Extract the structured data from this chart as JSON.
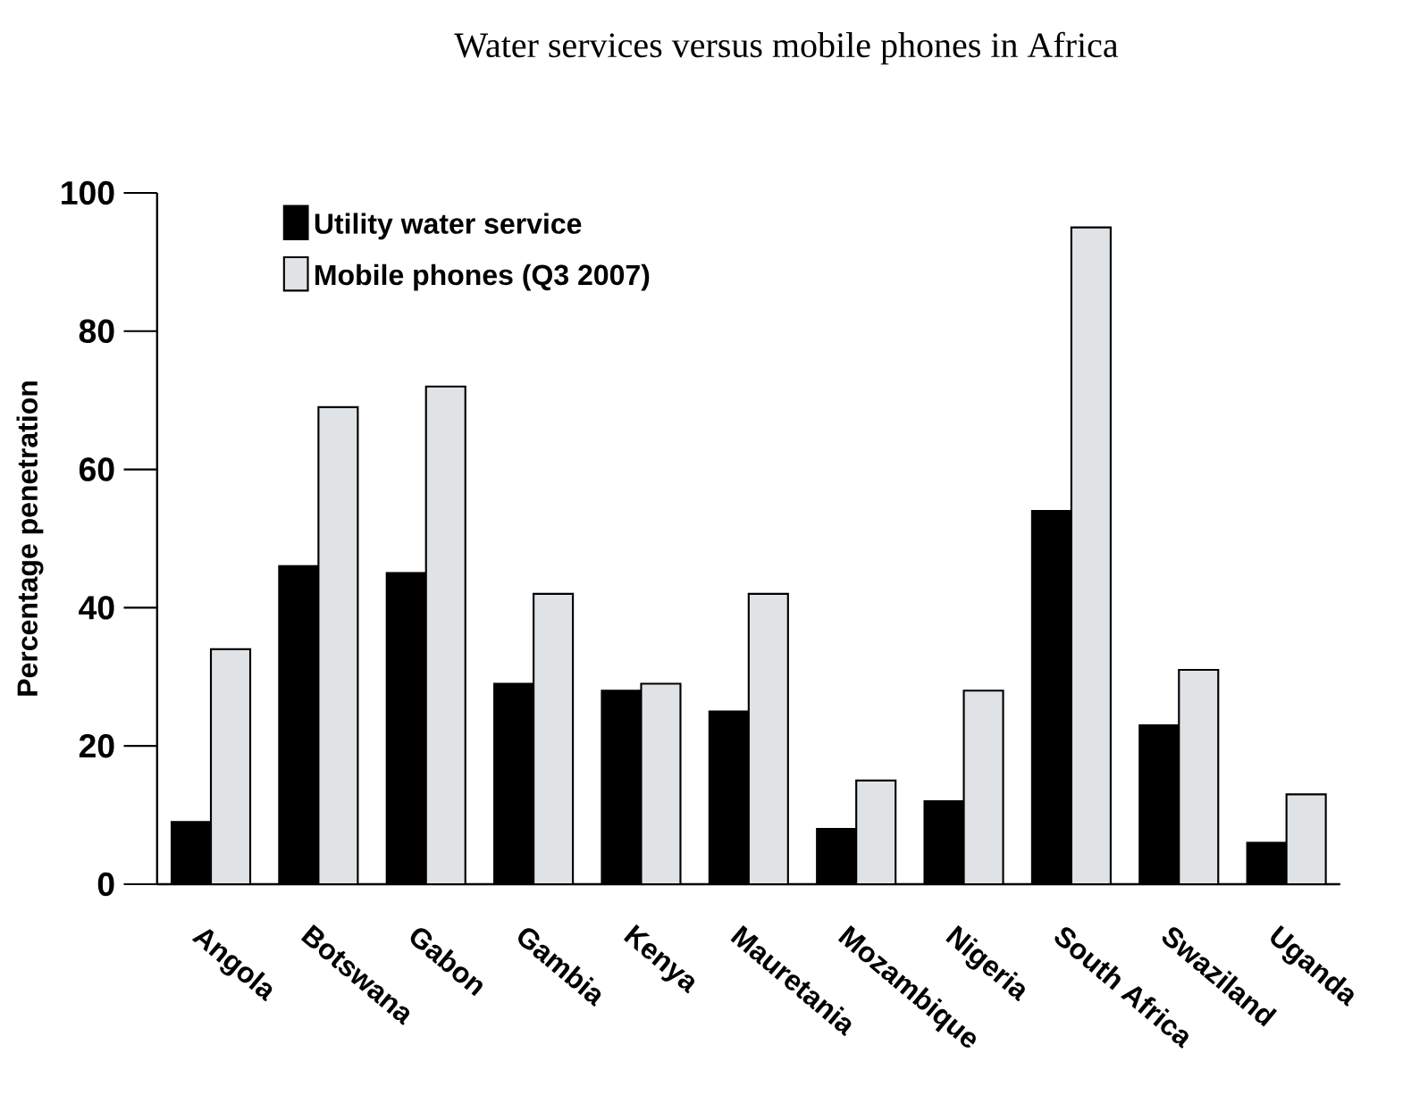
{
  "chart_data": {
    "type": "bar",
    "title": "Water services versus mobile phones in Africa",
    "ylabel": "Percentage penetration",
    "categories": [
      "Angola",
      "Botswana",
      "Gabon",
      "Gambia",
      "Kenya",
      "Mauretania",
      "Mozambique",
      "Nigeria",
      "South Africa",
      "Swaziland",
      "Uganda"
    ],
    "series": [
      {
        "name": "Utility water service",
        "color": "#000000",
        "values": [
          9,
          46,
          45,
          29,
          28,
          25,
          8,
          12,
          54,
          23,
          6
        ]
      },
      {
        "name": "Mobile phones (Q3 2007)",
        "color": "#e0e3e6",
        "values": [
          34,
          69,
          72,
          42,
          29,
          42,
          15,
          28,
          95,
          31,
          13
        ]
      }
    ],
    "ylim": [
      0,
      100
    ],
    "yticks": [
      0,
      20,
      40,
      60,
      80,
      100
    ],
    "grid": false,
    "legend": "top left"
  }
}
